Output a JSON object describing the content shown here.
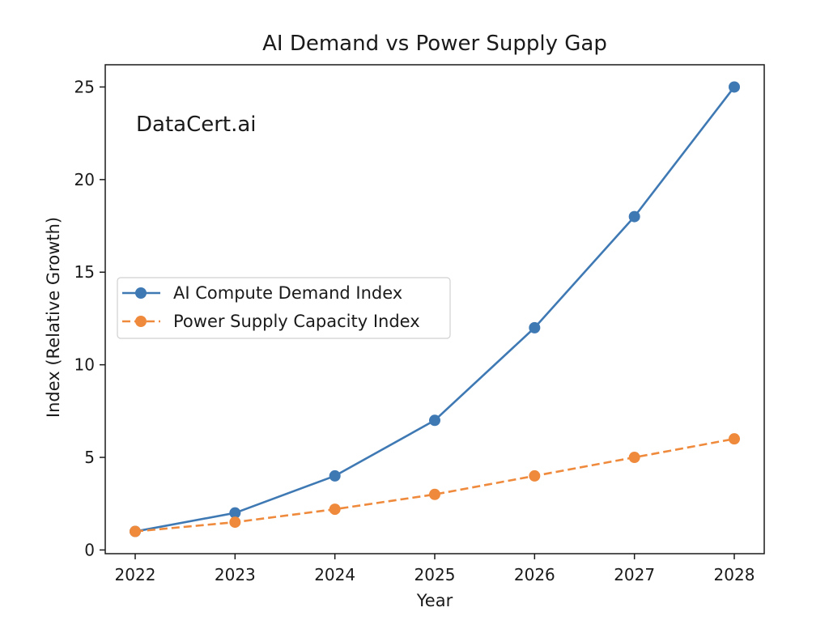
{
  "chart_data": {
    "type": "line",
    "title": "AI Demand vs Power Supply Gap",
    "xlabel": "Year",
    "ylabel": "Index (Relative Growth)",
    "x": [
      2022,
      2023,
      2024,
      2025,
      2026,
      2027,
      2028
    ],
    "xlim": [
      2021.7,
      2028.3
    ],
    "ylim": [
      -0.2,
      26.2
    ],
    "yticks": [
      0,
      5,
      10,
      15,
      20,
      25
    ],
    "grid": false,
    "legend_position": "center-left",
    "annotation": "DataCert.ai",
    "series": [
      {
        "name": "AI Compute Demand Index",
        "values": [
          1,
          2,
          4,
          7,
          12,
          18,
          25
        ],
        "color": "#3f79b4",
        "style": "solid",
        "marker": "circle"
      },
      {
        "name": "Power Supply Capacity Index",
        "values": [
          1,
          1.5,
          2.2,
          3,
          4,
          5,
          6
        ],
        "color": "#ef8a3c",
        "style": "dashed",
        "marker": "circle"
      }
    ]
  }
}
